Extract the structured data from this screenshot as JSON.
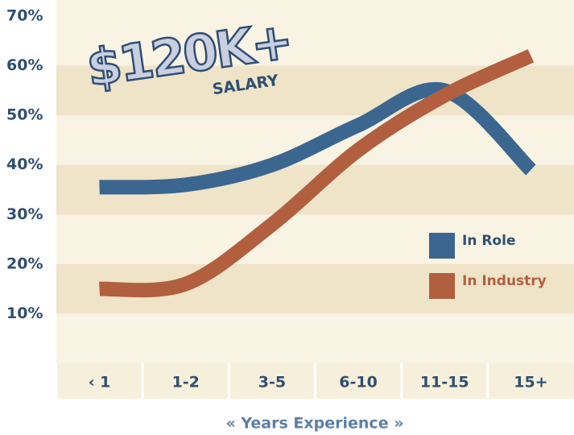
{
  "chart_data": {
    "type": "line",
    "title": "$120K+",
    "subtitle": "SALARY",
    "x_label": "« Years Experience »",
    "categories": [
      "‹ 1",
      "1-2",
      "3-5",
      "6-10",
      "11-15",
      "15+"
    ],
    "series": [
      {
        "name": "In Role",
        "color": "#3a6690",
        "values": [
          35.5,
          36,
          40,
          48,
          55,
          39
        ]
      },
      {
        "name": "In Industry",
        "color": "#b15f3f",
        "values": [
          15,
          16,
          28,
          43,
          54,
          62
        ]
      }
    ],
    "ylim": [
      0,
      70
    ],
    "yticks": [
      {
        "value": 10,
        "label": "10%"
      },
      {
        "value": 20,
        "label": "20%"
      },
      {
        "value": 30,
        "label": "30%"
      },
      {
        "value": 40,
        "label": "40%"
      },
      {
        "value": 50,
        "label": "50%"
      },
      {
        "value": 60,
        "label": "60%"
      },
      {
        "value": 70,
        "label": "70%"
      }
    ],
    "grid": true
  }
}
